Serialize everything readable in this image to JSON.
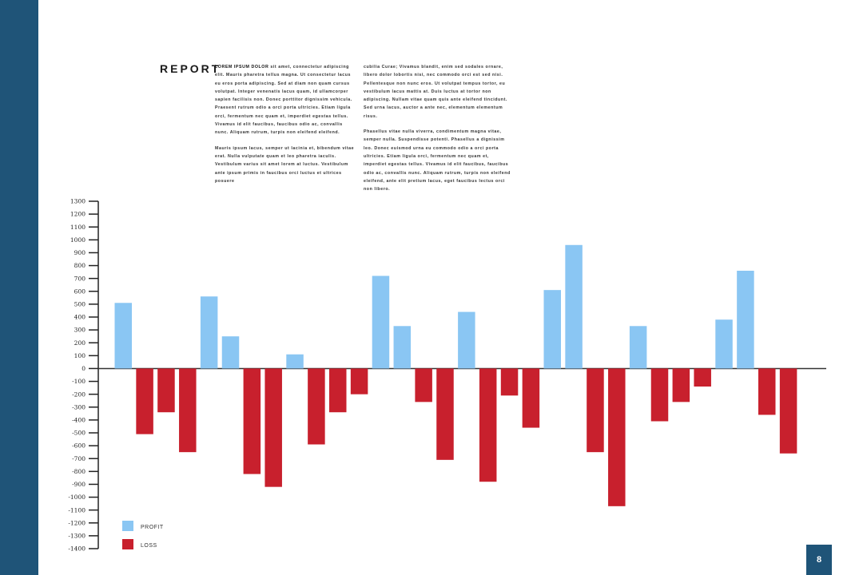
{
  "report": {
    "title": "REPORT",
    "column1": [
      {
        "lead": "LOREM IPSUM DOLOR",
        "text": " sit amet, connectetur adipiscing elit. Mauris pharetra tellus magna. Ut consectetur lacus eu eros porta adipiscing. Sed at diam non quam cursus volutpat. Integer venenatis lacus quam, id ullamcorper sapien facilisis non. Donec porttitor dignissim vehicula. Praesent rutrum odio a orci porta ultricies. Etiam ligula orci, fermentum nec quam et, imperdiet egestas tellus. Vivamus id elit faucibus, faucibus odio ac, convallis nunc. Aliquam rutrum, turpis non eleifend eleifend."
      },
      {
        "lead": "",
        "text": "Mauris ipsum lacus, semper ut lacinia et, bibendum vitae erat. Nulla vulputate quam et leo pharetra iaculis. Vestibulum varius sit amet lorem at luctus. Vestibulum ante ipsum primis in faucibus orci luctus et ultrices posuere"
      }
    ],
    "column2": [
      {
        "lead": "",
        "text": "cubilia Curae; Vivamus blandit, enim sed sodales ornare, libero dolor lobortis nisi, nec commodo orci est sed nisi. Pellentesque non nunc eros. Ut volutpat tempus tortor, eu vestibulum lacus mattis at. Duis luctus at tortor non adipiscing. Nullam vitae quam quis ante eleifend tincidunt. Sed urna lacus, auctor a ante nec, elementum elementum risus."
      },
      {
        "lead": "",
        "text": "Phasellus vitae nulla viverra, condimentum magna vitae, semper nulla. Suspendisse potenti. Phasellus a dignissim leo. Donec euismod urna eu commodo odio a orci porta ultricies. Etiam ligula orci, fermentum nec quam et, imperdiet egestas tellus. Vivamus id elit faucibus, faucibus odio ac, convallis nunc. Aliquam rutrum, turpis non eleifend eleifend, ante elit pretium lacus, eget faucibus lectus orci non libero."
      }
    ]
  },
  "page_number": "8",
  "colors": {
    "band": "#1f5478",
    "profit": "#8ac6f3",
    "loss": "#c8202d"
  },
  "chart_data": {
    "type": "bar",
    "title": "",
    "xlabel": "",
    "ylabel": "",
    "ylim": [
      -1400,
      1300
    ],
    "yticks": [
      1300,
      1200,
      1100,
      1000,
      900,
      800,
      700,
      600,
      500,
      400,
      300,
      200,
      100,
      0,
      -100,
      -200,
      -300,
      -400,
      -500,
      -600,
      -700,
      -800,
      -900,
      -1000,
      -1100,
      -1200,
      -1300,
      -1400
    ],
    "grid": false,
    "legend_position": "bottom-left",
    "series": [
      {
        "name": "PROFIT",
        "color": "#8ac6f3",
        "values": [
          510,
          null,
          null,
          null,
          560,
          250,
          null,
          null,
          110,
          null,
          null,
          null,
          720,
          330,
          null,
          null,
          440,
          null,
          null,
          null,
          610,
          960,
          null,
          null,
          330,
          null,
          null,
          null,
          380,
          760,
          null,
          null
        ]
      },
      {
        "name": "LOSS",
        "color": "#c8202d",
        "values": [
          null,
          -510,
          -340,
          -650,
          null,
          null,
          -820,
          -920,
          null,
          -590,
          -340,
          -200,
          null,
          null,
          -260,
          -710,
          null,
          -880,
          -210,
          -460,
          null,
          null,
          -650,
          -1070,
          null,
          -410,
          -260,
          -140,
          null,
          null,
          -360,
          -660
        ]
      }
    ]
  }
}
